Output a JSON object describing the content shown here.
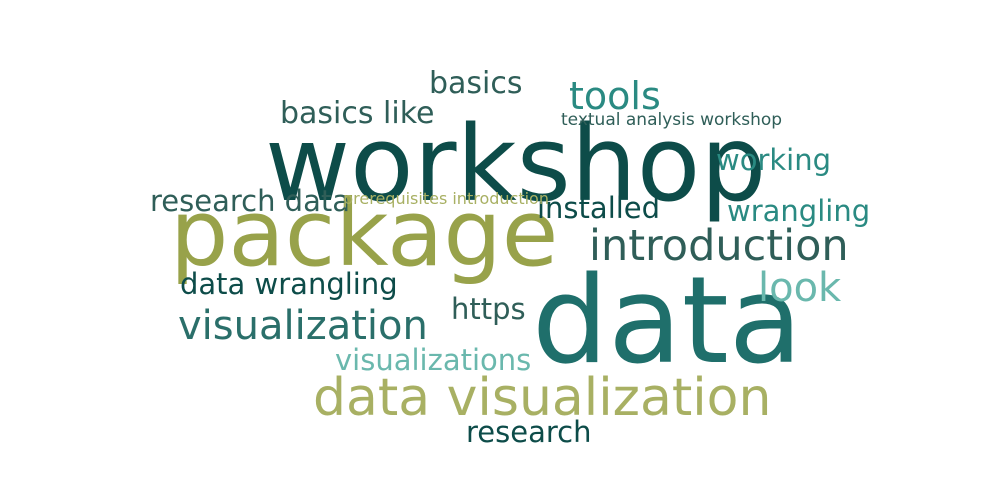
{
  "wordcloud": {
    "colors": {
      "dark_teal": "#0d4c49",
      "teal": "#1f6f6b",
      "mid_teal": "#2a8a82",
      "light_teal": "#6ab8ad",
      "olive": "#98a24a",
      "light_olive": "#a8b063",
      "slate_green": "#2f5e58"
    },
    "words": [
      {
        "id": "w-workshop",
        "text": "workshop",
        "color": "#0d4c49"
      },
      {
        "id": "w-package",
        "text": "package",
        "color": "#98a24a"
      },
      {
        "id": "w-data",
        "text": "data",
        "color": "#1f6f6b"
      },
      {
        "id": "w-data-viz",
        "text": "data visualization",
        "color": "#a8b063"
      },
      {
        "id": "w-intro",
        "text": "introduction",
        "color": "#2f5e58"
      },
      {
        "id": "w-visualization",
        "text": "visualization",
        "color": "#2a6f6a"
      },
      {
        "id": "w-tools",
        "text": "tools",
        "color": "#2a8a82"
      },
      {
        "id": "w-look",
        "text": "look",
        "color": "#6ab8ad"
      },
      {
        "id": "w-basics",
        "text": "basics",
        "color": "#2f5e58"
      },
      {
        "id": "w-basics-like",
        "text": "basics like",
        "color": "#2f5e58"
      },
      {
        "id": "w-research-data",
        "text": "research data",
        "color": "#2f5e58"
      },
      {
        "id": "w-installed",
        "text": "installed",
        "color": "#0d4c49"
      },
      {
        "id": "w-working",
        "text": "working",
        "color": "#2a8a82"
      },
      {
        "id": "w-wrangling",
        "text": "wrangling",
        "color": "#2a8a82"
      },
      {
        "id": "w-data-wrangling",
        "text": "data wrangling",
        "color": "#0d4c49"
      },
      {
        "id": "w-https",
        "text": "https",
        "color": "#2f5e58"
      },
      {
        "id": "w-visualizations",
        "text": "visualizations",
        "color": "#6ab8ad"
      },
      {
        "id": "w-research",
        "text": "research",
        "color": "#0d4c49"
      },
      {
        "id": "w-textual",
        "text": "textual analysis workshop",
        "color": "#2f5e58"
      },
      {
        "id": "w-prereq",
        "text": "prerequisites introduction",
        "color": "#a8b063"
      }
    ]
  }
}
